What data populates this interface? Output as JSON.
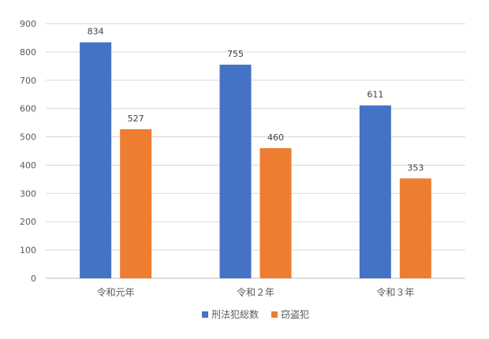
{
  "chart_data": {
    "type": "bar",
    "categories": [
      "令和元年",
      "令和２年",
      "令和３年"
    ],
    "series": [
      {
        "name": "刑法犯総数",
        "values": [
          834,
          755,
          611
        ],
        "color": "#4472C4"
      },
      {
        "name": "窃盗犯",
        "values": [
          527,
          460,
          353
        ],
        "color": "#ED7D31"
      }
    ],
    "title": "",
    "xlabel": "",
    "ylabel": "",
    "ylim": [
      0,
      900
    ],
    "yticks": [
      0,
      100,
      200,
      300,
      400,
      500,
      600,
      700,
      800,
      900
    ],
    "grid": true,
    "legend_position": "bottom"
  }
}
